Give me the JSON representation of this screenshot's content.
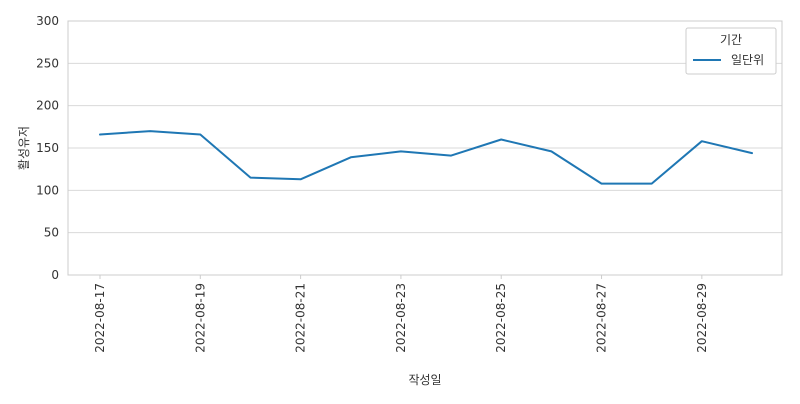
{
  "chart_data": {
    "type": "line",
    "xlabel": "작성일",
    "ylabel": "활성유저",
    "ylim": [
      0,
      300
    ],
    "yticks": [
      "0",
      "50",
      "100",
      "150",
      "200",
      "250",
      "300"
    ],
    "x": [
      "2022-08-17",
      "2022-08-18",
      "2022-08-19",
      "2022-08-20",
      "2022-08-21",
      "2022-08-22",
      "2022-08-23",
      "2022-08-24",
      "2022-08-25",
      "2022-08-26",
      "2022-08-27",
      "2022-08-28",
      "2022-08-29",
      "2022-08-30"
    ],
    "xtick_labels": [
      "2022-08-17",
      "2022-08-19",
      "2022-08-21",
      "2022-08-23",
      "2022-08-25",
      "2022-08-27",
      "2022-08-29"
    ],
    "series": [
      {
        "name": "일단위",
        "color": "#1f77b4",
        "values": [
          166,
          170,
          166,
          115,
          113,
          139,
          146,
          141,
          160,
          146,
          108,
          108,
          158,
          144
        ]
      }
    ],
    "legend": {
      "title": "기간",
      "position": "top-right"
    },
    "grid": "y-only"
  }
}
